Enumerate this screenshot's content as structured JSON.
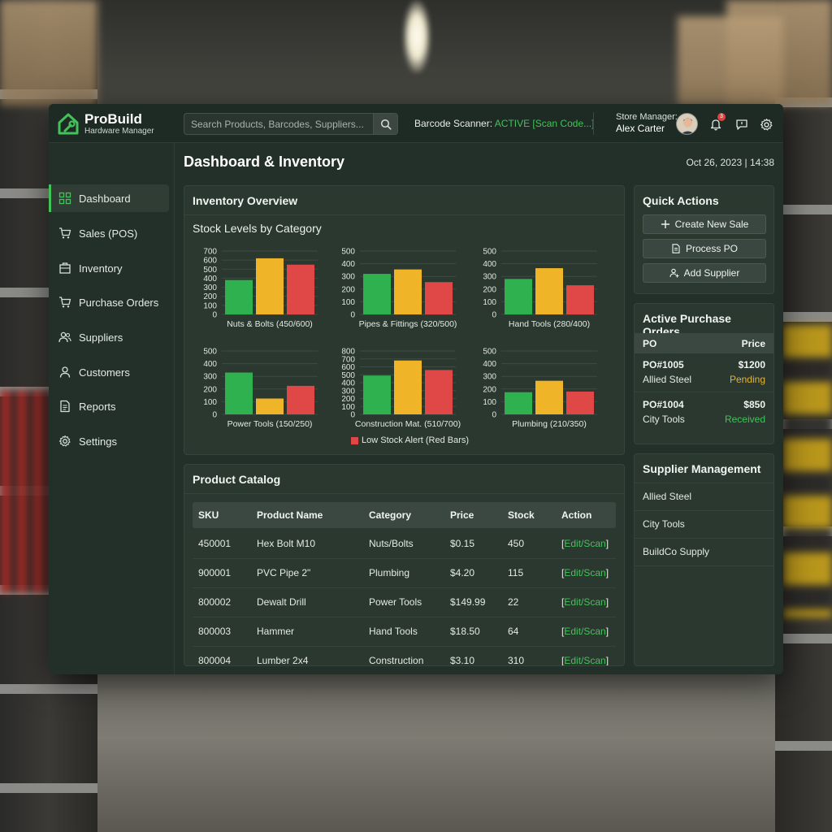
{
  "app": {
    "name": "ProBuild",
    "subtitle": "Hardware Manager",
    "accent": "#43c25a"
  },
  "header": {
    "search_placeholder": "Search Products, Barcodes, Suppliers...",
    "scanner_label": "Barcode Scanner: ",
    "scanner_status": "ACTIVE [Scan Code...]",
    "manager_label": "Store Manager:",
    "manager_name": "Alex Carter",
    "notification_count": "3",
    "icons": [
      "search-icon",
      "bell-icon",
      "message-icon",
      "gear-icon"
    ]
  },
  "sidebar": {
    "items": [
      {
        "label": "Dashboard",
        "icon": "dashboard-icon",
        "active": true
      },
      {
        "label": "Sales (POS)",
        "icon": "cart-icon"
      },
      {
        "label": "Inventory",
        "icon": "box-icon"
      },
      {
        "label": "Purchase Orders",
        "icon": "cart-icon"
      },
      {
        "label": "Suppliers",
        "icon": "users-icon"
      },
      {
        "label": "Customers",
        "icon": "user-icon"
      },
      {
        "label": "Reports",
        "icon": "document-icon"
      },
      {
        "label": "Settings",
        "icon": "gear-icon"
      }
    ]
  },
  "main": {
    "title": "Dashboard & Inventory",
    "datetime": "Oct 26, 2023 | 14:38"
  },
  "inventory": {
    "title": "Inventory Overview",
    "subtitle": "Stock Levels by Category",
    "legend": "Low Stock Alert (Red Bars)"
  },
  "chart_data": [
    {
      "type": "bar",
      "title": "Nuts & Bolts (450/600)",
      "ylim": [
        0,
        700
      ],
      "yticks": [
        0,
        100,
        200,
        300,
        400,
        500,
        600,
        700
      ],
      "values": [
        380,
        620,
        550
      ],
      "colors": [
        "#2fb150",
        "#f0b429",
        "#e04848"
      ]
    },
    {
      "type": "bar",
      "title": "Pipes & Fittings (320/500)",
      "ylim": [
        0,
        500
      ],
      "yticks": [
        0,
        100,
        200,
        300,
        400,
        500
      ],
      "values": [
        320,
        355,
        255
      ],
      "colors": [
        "#2fb150",
        "#f0b429",
        "#e04848"
      ]
    },
    {
      "type": "bar",
      "title": "Hand Tools (280/400)",
      "ylim": [
        0,
        500
      ],
      "yticks": [
        0,
        100,
        200,
        300,
        400,
        500
      ],
      "values": [
        280,
        365,
        230
      ],
      "colors": [
        "#2fb150",
        "#f0b429",
        "#e04848"
      ]
    },
    {
      "type": "bar",
      "title": "Power Tools (150/250)",
      "ylim": [
        0,
        500
      ],
      "yticks": [
        0,
        100,
        200,
        300,
        400,
        500
      ],
      "values": [
        330,
        125,
        225
      ],
      "colors": [
        "#2fb150",
        "#f0b429",
        "#e04848"
      ]
    },
    {
      "type": "bar",
      "title": "Construction Mat. (510/700)",
      "ylim": [
        0,
        800
      ],
      "yticks": [
        0,
        100,
        200,
        300,
        400,
        500,
        600,
        700,
        800
      ],
      "values": [
        490,
        680,
        560
      ],
      "colors": [
        "#2fb150",
        "#f0b429",
        "#e04848"
      ]
    },
    {
      "type": "bar",
      "title": "Plumbing (210/350)",
      "ylim": [
        0,
        500
      ],
      "yticks": [
        0,
        100,
        200,
        300,
        400,
        500
      ],
      "values": [
        175,
        265,
        180
      ],
      "colors": [
        "#2fb150",
        "#f0b429",
        "#e04848"
      ]
    }
  ],
  "catalog": {
    "title": "Product Catalog",
    "columns": [
      "SKU",
      "Product Name",
      "Category",
      "Price",
      "Stock",
      "Action"
    ],
    "rows": [
      {
        "sku": "450001",
        "name": "Hex Bolt M10",
        "category": "Nuts/Bolts",
        "price": "$0.15",
        "stock": "450",
        "action": "Edit/Scan"
      },
      {
        "sku": "900001",
        "name": "PVC Pipe 2\"",
        "category": "Plumbing",
        "price": "$4.20",
        "stock": "115",
        "action": "Edit/Scan"
      },
      {
        "sku": "800002",
        "name": "Dewalt Drill",
        "category": "Power Tools",
        "price": "$149.99",
        "stock": "22",
        "action": "Edit/Scan"
      },
      {
        "sku": "800003",
        "name": "Hammer",
        "category": "Hand Tools",
        "price": "$18.50",
        "stock": "64",
        "action": "Edit/Scan"
      },
      {
        "sku": "800004",
        "name": "Lumber 2x4",
        "category": "Construction",
        "price": "$3.10",
        "stock": "310",
        "action": "Edit/Scan"
      }
    ]
  },
  "quick_actions": {
    "title": "Quick Actions",
    "buttons": [
      {
        "label": "Create New Sale",
        "icon": "plus-icon"
      },
      {
        "label": "Process PO",
        "icon": "document-icon"
      },
      {
        "label": "Add Supplier",
        "icon": "add-user-icon"
      }
    ]
  },
  "purchase_orders": {
    "title": "Active Purchase Orders",
    "col_po": "PO",
    "col_price": "Price",
    "orders": [
      {
        "id": "PO#1005",
        "amount": "$1200",
        "supplier": "Allied Steel",
        "status": "Pending",
        "status_color": "#e0b43a"
      },
      {
        "id": "PO#1004",
        "amount": "$850",
        "supplier": "City Tools",
        "status": "Received",
        "status_color": "#43c25a"
      }
    ]
  },
  "suppliers": {
    "title": "Supplier Management",
    "items": [
      "Allied Steel",
      "City Tools",
      "BuildCo Supply"
    ]
  }
}
